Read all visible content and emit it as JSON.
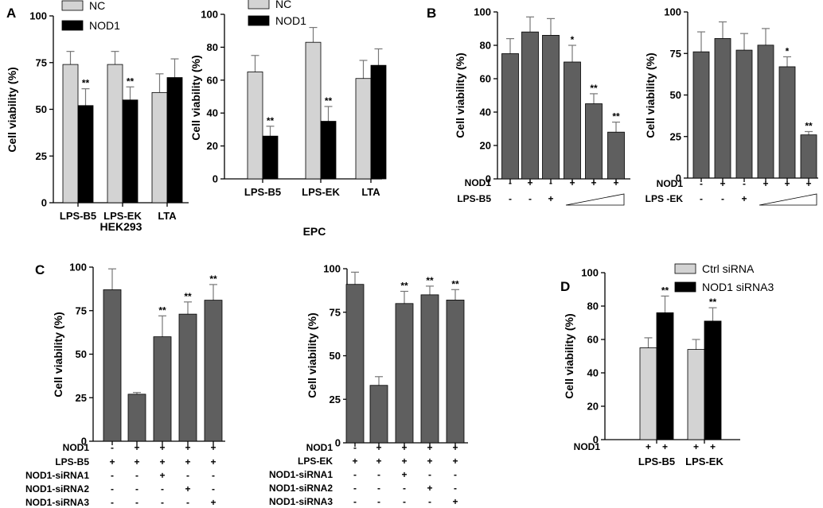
{
  "panel_labels": [
    "A",
    "B",
    "C",
    "D"
  ],
  "colors": {
    "nc": "#d3d3d3",
    "nod1": "#000000",
    "gray": "#5f5f5f",
    "ctrl": "#d3d3d3"
  },
  "chart_data": [
    {
      "id": "A1",
      "panel": "A",
      "type": "bar",
      "ylabel": "Cell viability (%)",
      "xlabel": "HEK293",
      "ylim": [
        0,
        100
      ],
      "yticks": [
        0,
        25,
        50,
        75,
        100
      ],
      "categories": [
        "LPS-B5",
        "LPS-EK",
        "LTA"
      ],
      "series": [
        {
          "name": "NC",
          "color": "#d3d3d3",
          "values": [
            74,
            74,
            59
          ],
          "errors": [
            7,
            7,
            10
          ],
          "stars": [
            "",
            "",
            ""
          ]
        },
        {
          "name": "NOD1",
          "color": "#000000",
          "values": [
            52,
            55,
            67
          ],
          "errors": [
            9,
            7,
            10
          ],
          "stars": [
            "**",
            "**",
            ""
          ]
        }
      ],
      "legend": [
        "NC",
        "NOD1"
      ]
    },
    {
      "id": "A2",
      "panel": "A",
      "type": "bar",
      "ylabel": "Cell viability (%)",
      "xlabel": "EPC",
      "ylim": [
        0,
        100
      ],
      "yticks": [
        0,
        20,
        40,
        60,
        80,
        100
      ],
      "categories": [
        "LPS-B5",
        "LPS-EK",
        "LTA"
      ],
      "series": [
        {
          "name": "NC",
          "color": "#d3d3d3",
          "values": [
            65,
            83,
            61
          ],
          "errors": [
            10,
            9,
            11
          ],
          "stars": [
            "",
            "",
            ""
          ]
        },
        {
          "name": "NOD1",
          "color": "#000000",
          "values": [
            26,
            35,
            69
          ],
          "errors": [
            6,
            9,
            10
          ],
          "stars": [
            "**",
            "**",
            ""
          ]
        }
      ],
      "legend": [
        "NC",
        "NOD1"
      ]
    },
    {
      "id": "B1",
      "panel": "B",
      "type": "bar",
      "ylabel": "Cell viability (%)",
      "ylim": [
        0,
        100
      ],
      "yticks": [
        0,
        20,
        40,
        60,
        80,
        100
      ],
      "values": [
        75,
        88,
        86,
        70,
        45,
        28
      ],
      "errors": [
        9,
        9,
        10,
        10,
        6,
        6
      ],
      "stars": [
        "",
        "",
        "",
        "*",
        "**",
        "**"
      ],
      "rows": [
        {
          "label": "NOD1",
          "signs": [
            "-",
            "+",
            "-",
            "+",
            "+",
            "+"
          ]
        },
        {
          "label": "LPS-B5",
          "signs": [
            "-",
            "-",
            "+",
            "",
            "",
            ""
          ]
        }
      ]
    },
    {
      "id": "B2",
      "panel": "B",
      "type": "bar",
      "ylabel": "Cell viability (%)",
      "ylim": [
        0,
        100
      ],
      "yticks": [
        0,
        25,
        50,
        75,
        100
      ],
      "values": [
        76,
        84,
        77,
        80,
        67,
        26
      ],
      "errors": [
        12,
        10,
        10,
        10,
        6,
        2
      ],
      "stars": [
        "",
        "",
        "",
        "",
        "*",
        "**"
      ],
      "rows": [
        {
          "label": "NOD1",
          "signs": [
            "-",
            "+",
            "-",
            "+",
            "+",
            "+"
          ]
        },
        {
          "label": "LPS -EK",
          "signs": [
            "-",
            "-",
            "+",
            "",
            "",
            ""
          ]
        }
      ]
    },
    {
      "id": "C1",
      "panel": "C",
      "type": "bar",
      "ylabel": "Cell viability (%)",
      "ylim": [
        0,
        100
      ],
      "yticks": [
        0,
        25,
        50,
        75,
        100
      ],
      "values": [
        87,
        27,
        60,
        73,
        81
      ],
      "errors": [
        12,
        1,
        12,
        7,
        9
      ],
      "stars": [
        "",
        "",
        "**",
        "**",
        "**"
      ],
      "rows": [
        {
          "label": "NOD1",
          "signs": [
            "-",
            "+",
            "+",
            "+",
            "+"
          ]
        },
        {
          "label": "LPS-B5",
          "signs": [
            "+",
            "+",
            "+",
            "+",
            "+"
          ]
        },
        {
          "label": "NOD1-siRNA1",
          "signs": [
            "-",
            "-",
            "+",
            "-",
            "-"
          ]
        },
        {
          "label": "NOD1-siRNA2",
          "signs": [
            "-",
            "-",
            "-",
            "+",
            "-"
          ]
        },
        {
          "label": "NOD1-siRNA3",
          "signs": [
            "-",
            "-",
            "-",
            "-",
            "+"
          ]
        }
      ]
    },
    {
      "id": "C2",
      "panel": "C",
      "type": "bar",
      "ylabel": "Cell viability (%)",
      "ylim": [
        0,
        100
      ],
      "yticks": [
        0,
        25,
        50,
        75,
        100
      ],
      "values": [
        91,
        33,
        80,
        85,
        82
      ],
      "errors": [
        7,
        5,
        7,
        5,
        6
      ],
      "stars": [
        "",
        "",
        "**",
        "**",
        "**"
      ],
      "rows": [
        {
          "label": "NOD1",
          "signs": [
            "-",
            "+",
            "+",
            "+",
            "+"
          ]
        },
        {
          "label": "LPS-EK",
          "signs": [
            "+",
            "+",
            "+",
            "+",
            "+"
          ]
        },
        {
          "label": "NOD1-siRNA1",
          "signs": [
            "-",
            "-",
            "+",
            "-",
            "-"
          ]
        },
        {
          "label": "NOD1-siRNA2",
          "signs": [
            "-",
            "-",
            "-",
            "+",
            "-"
          ]
        },
        {
          "label": "NOD1-siRNA3",
          "signs": [
            "-",
            "-",
            "-",
            "-",
            "+"
          ]
        }
      ]
    },
    {
      "id": "D",
      "panel": "D",
      "type": "bar",
      "ylabel": "Cell viability (%)",
      "ylim": [
        0,
        100
      ],
      "yticks": [
        0,
        20,
        40,
        60,
        80,
        100
      ],
      "categories": [
        "LPS-B5",
        "LPS-EK"
      ],
      "series": [
        {
          "name": "Ctrl siRNA",
          "color": "#d3d3d3",
          "values": [
            55,
            54
          ],
          "errors": [
            6,
            6
          ],
          "stars": [
            "",
            ""
          ]
        },
        {
          "name": "NOD1 siRNA3",
          "color": "#000000",
          "values": [
            76,
            71
          ],
          "errors": [
            10,
            8
          ],
          "stars": [
            "**",
            "**"
          ]
        }
      ],
      "legend": [
        "Ctrl siRNA",
        "NOD1 siRNA3"
      ],
      "rows": [
        {
          "label": "NOD1",
          "signs": [
            "+",
            "+",
            "+",
            "+"
          ]
        }
      ]
    }
  ]
}
